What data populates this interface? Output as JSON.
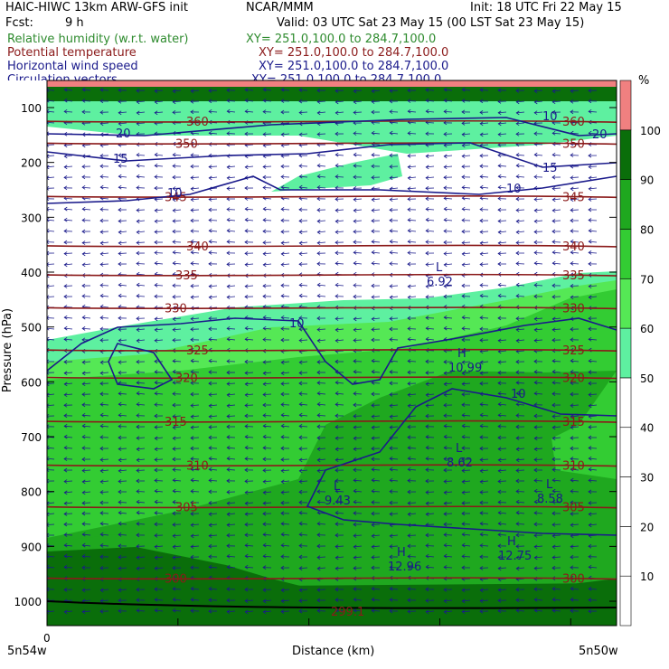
{
  "header": {
    "model": "HAIC-HIWC 13km ARW-GFS init",
    "org": "NCAR/MMM",
    "init": "Init: 18 UTC Fri 22 May 15",
    "fcst_label": "Fcst:",
    "fcst_value": "9 h",
    "valid": "Valid: 03 UTC Sat 23 May 15 (00 LST Sat 23 May 15)",
    "fields": [
      {
        "name": "Relative humidity (w.r.t. water)",
        "xy": "XY= 251.0,100.0 to 284.7,100.0",
        "color": "#2e8b2e"
      },
      {
        "name": "Potential temperature",
        "xy": "XY= 251.0,100.0 to 284.7,100.0",
        "color": "#8b1a1a"
      },
      {
        "name": "Horizontal wind speed",
        "xy": "XY= 251.0,100.0 to 284.7,100.0",
        "color": "#1a1a8b"
      },
      {
        "name": "Circulation vectors",
        "xy": "XY= 251.0,100.0 to 284.7,100.0",
        "color": "#1a1a8b"
      }
    ]
  },
  "chart_data": {
    "type": "heatmap",
    "xlabel": "Distance (km)",
    "ylabel": "Pressure (hPa)",
    "x_tick_label": "0",
    "x_left_label": "5n54w",
    "x_right_label": "5n50w",
    "y_ticks": [
      100,
      200,
      300,
      400,
      500,
      600,
      700,
      800,
      900,
      1000
    ],
    "ylim": [
      1050,
      70
    ],
    "colorbar": {
      "unit": "%",
      "levels": [
        10,
        20,
        30,
        40,
        50,
        60,
        70,
        80,
        90,
        100
      ],
      "colors": [
        "#ffffff",
        "#ffffff",
        "#ffffff",
        "#ffffff",
        "#ffffff",
        "#5ef0a0",
        "#55e855",
        "#33cc33",
        "#1fa81f",
        "#0a6e0a",
        "#f08080"
      ]
    },
    "theta_contours": [
      {
        "label": "300",
        "p": 958
      },
      {
        "label": "305",
        "p": 828
      },
      {
        "label": "310",
        "p": 752
      },
      {
        "label": "315",
        "p": 672
      },
      {
        "label": "320",
        "p": 592
      },
      {
        "label": "325",
        "p": 542
      },
      {
        "label": "330",
        "p": 465
      },
      {
        "label": "335",
        "p": 405
      },
      {
        "label": "340",
        "p": 352
      },
      {
        "label": "345",
        "p": 262
      },
      {
        "label": "350",
        "p": 165
      },
      {
        "label": "360",
        "p": 125
      }
    ],
    "wind_contour_labels": [
      "10",
      "10",
      "10",
      "10",
      "15",
      "15",
      "20",
      "10",
      "20"
    ],
    "extrema": [
      {
        "kind": "L",
        "value": "6.92"
      },
      {
        "kind": "H",
        "value": "10.99"
      },
      {
        "kind": "L",
        "value": "8.62"
      },
      {
        "kind": "L",
        "value": "9.43"
      },
      {
        "kind": "L",
        "value": "8.58"
      },
      {
        "kind": "H",
        "value": "12.96"
      },
      {
        "kind": "H",
        "value": "12.75"
      }
    ],
    "surface_label": "299.1"
  }
}
